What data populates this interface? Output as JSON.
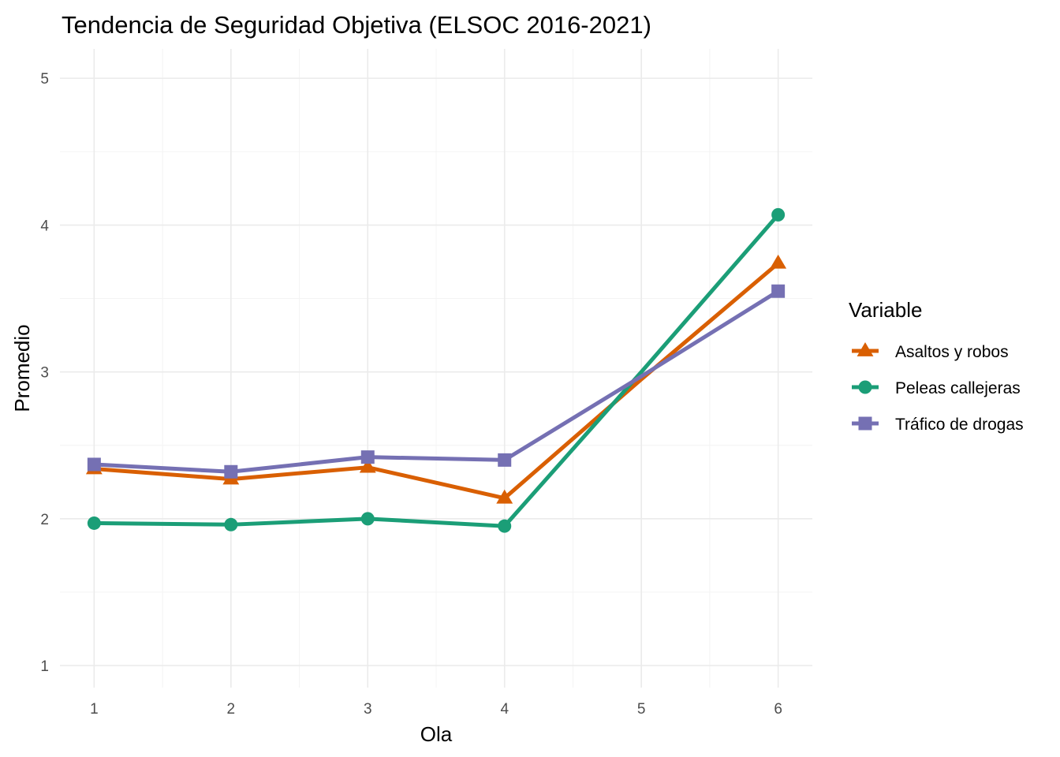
{
  "chart_data": {
    "type": "line",
    "title": "Tendencia de Seguridad Objetiva (ELSOC 2016-2021)",
    "xlabel": "Ola",
    "ylabel": "Promedio",
    "x": [
      1,
      2,
      3,
      4,
      5,
      6
    ],
    "xlim": [
      0.75,
      6.25
    ],
    "ylim": [
      0.85,
      5.2
    ],
    "x_ticks": [
      "1",
      "2",
      "3",
      "4",
      "5",
      "6"
    ],
    "y_ticks": [
      "1",
      "2",
      "3",
      "4",
      "5"
    ],
    "grid": true,
    "legend": {
      "title": "Variable",
      "position": "right"
    },
    "series": [
      {
        "name": "Asaltos y robos",
        "color": "#D95F02",
        "marker": "triangle",
        "values": [
          2.34,
          2.27,
          2.35,
          2.14,
          2.95,
          3.74
        ]
      },
      {
        "name": "Peleas callejeras",
        "color": "#1B9E77",
        "marker": "circle",
        "values": [
          1.97,
          1.96,
          2.0,
          1.95,
          3.0,
          4.07
        ]
      },
      {
        "name": "Tráfico de drogas",
        "color": "#7570B3",
        "marker": "square",
        "values": [
          2.37,
          2.32,
          2.42,
          2.4,
          2.97,
          3.55
        ]
      }
    ]
  }
}
